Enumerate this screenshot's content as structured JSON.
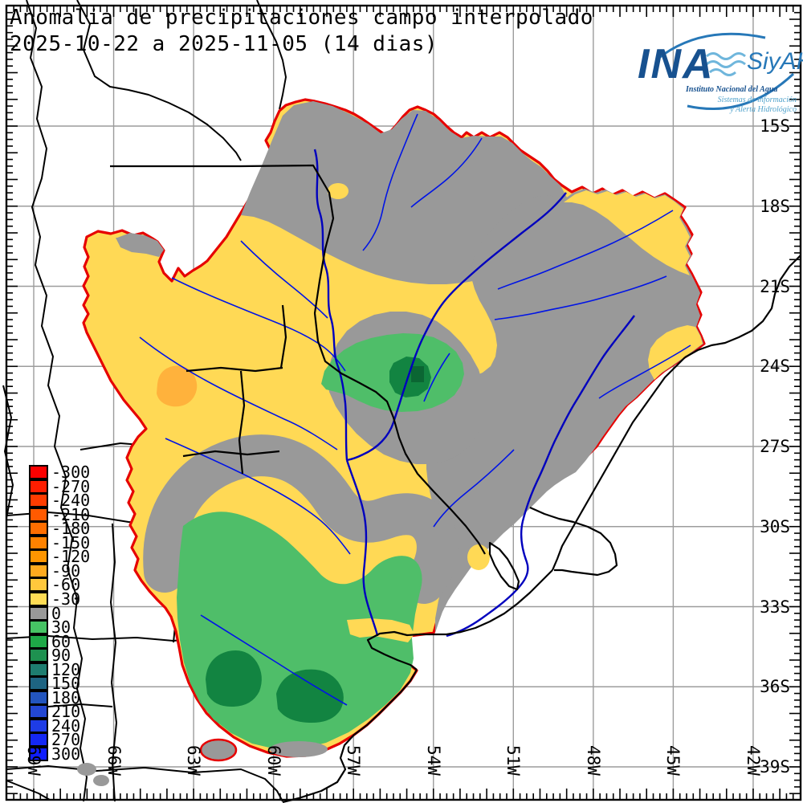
{
  "title": {
    "line1": "Anomalia de precipitaciones campo interpolado",
    "line2": "2025-10-22 a 2025-11-05 (14 dias)"
  },
  "logo": {
    "acronym": "INA",
    "system": "SiyAH",
    "institute": "Instituto Nacional del Agua",
    "subtitle1": "Sistemas de información",
    "subtitle2": "y Alerta Hidrológico",
    "color_dark": "#17518F",
    "color_light": "#52A3CC"
  },
  "legend": {
    "items": [
      {
        "value": "-300",
        "color": "#FA0000"
      },
      {
        "value": "-270",
        "color": "#FF1E00"
      },
      {
        "value": "-240",
        "color": "#FF3C00"
      },
      {
        "value": "-210",
        "color": "#FF5A00"
      },
      {
        "value": "-180",
        "color": "#FF6E00"
      },
      {
        "value": "-150",
        "color": "#FF8200"
      },
      {
        "value": "-120",
        "color": "#FF9600"
      },
      {
        "value": "-90",
        "color": "#FFAA1E"
      },
      {
        "value": "-60",
        "color": "#FFC83C"
      },
      {
        "value": "-30",
        "color": "#FFDC55"
      },
      {
        "value": "0",
        "color": "#999999"
      },
      {
        "value": "30",
        "color": "#46C364"
      },
      {
        "value": "60",
        "color": "#1EA847"
      },
      {
        "value": "90",
        "color": "#1E9150"
      },
      {
        "value": "120",
        "color": "#1E7D70"
      },
      {
        "value": "150",
        "color": "#1E6482"
      },
      {
        "value": "180",
        "color": "#2355BE"
      },
      {
        "value": "210",
        "color": "#2347D2"
      },
      {
        "value": "240",
        "color": "#1E3CE6"
      },
      {
        "value": "270",
        "color": "#1428F5"
      },
      {
        "value": "300",
        "color": "#0F1EFF"
      }
    ]
  },
  "axes": {
    "latitude_labels": [
      "15S",
      "18S",
      "21S",
      "24S",
      "27S",
      "30S",
      "33S",
      "36S",
      "39S"
    ],
    "longitude_labels": [
      "69W",
      "66W",
      "63W",
      "60W",
      "57W",
      "54W",
      "51W",
      "48W",
      "45W",
      "42W"
    ]
  },
  "map_colors": {
    "basin_outline_red": "#E60000",
    "anomaly_minus30_yellow": "#FFD955",
    "anomaly_zero_gray": "#999999",
    "anomaly_plus30_green": "#4FBE69",
    "anomaly_plus60_green": "#128441",
    "anomaly_plus90_green": "#0B6633",
    "anomaly_minus90_orange": "#FFB23C",
    "river_blue": "#0014E6",
    "border_black": "#000000",
    "grid_gray": "#9C9C9C"
  }
}
